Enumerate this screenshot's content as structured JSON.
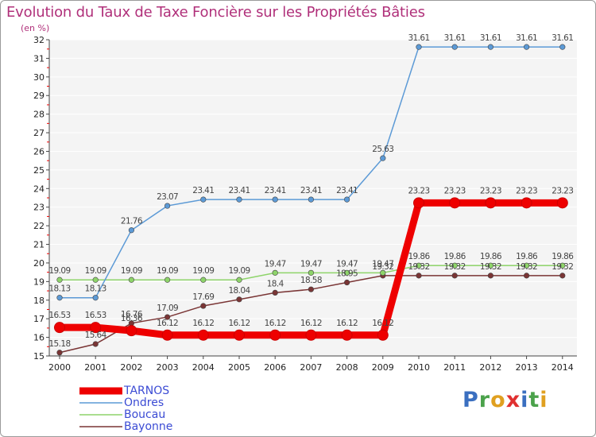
{
  "title": "Evolution du Taux de Taxe Foncière sur les Propriétés Bâties",
  "unit_label": "(en %)",
  "brand": {
    "name": "Proxiti",
    "letters": [
      "P",
      "r",
      "o",
      "x",
      "i",
      "t",
      "i"
    ],
    "letter_colors": [
      "#3a6fc0",
      "#4ba24b",
      "#e0a020",
      "#e03030",
      "#3a6fc0",
      "#4ba24b",
      "#e0a020"
    ]
  },
  "chart_data": {
    "type": "line",
    "title": "Evolution du Taux de Taxe Foncière sur les Propriétés Bâties",
    "ylabel": "(en %)",
    "xlabel": "",
    "categories": [
      "2000",
      "2001",
      "2002",
      "2003",
      "2004",
      "2005",
      "2006",
      "2007",
      "2008",
      "2009",
      "2010",
      "2011",
      "2012",
      "2013",
      "2014"
    ],
    "ylim": [
      15,
      32
    ],
    "yticks": [
      15,
      16,
      17,
      18,
      19,
      20,
      21,
      22,
      23,
      24,
      25,
      26,
      27,
      28,
      29,
      30,
      31,
      32
    ],
    "grid": "horizontal",
    "legend_position": "bottom-left",
    "series": [
      {
        "name": "TARNOS",
        "color": "#ee0000",
        "emphasis": true,
        "values": [
          16.53,
          16.53,
          16.36,
          16.12,
          16.12,
          16.12,
          16.12,
          16.12,
          16.12,
          16.12,
          23.23,
          23.23,
          23.23,
          23.23,
          23.23
        ],
        "labels": [
          "16.53",
          "16.53",
          "16.36",
          "16.12",
          "16.12",
          "16.12",
          "16.12",
          "16.12",
          "16.12",
          "16.12",
          "23.23",
          "23.23",
          "23.23",
          "23.23",
          "23.23"
        ]
      },
      {
        "name": "Ondres",
        "color": "#5c9ad6",
        "values": [
          18.13,
          18.13,
          21.76,
          23.07,
          23.41,
          23.41,
          23.41,
          23.41,
          23.41,
          25.63,
          31.61,
          31.61,
          31.61,
          31.61,
          31.61
        ],
        "labels": [
          "18.13",
          "18.13",
          "21.76",
          "23.07",
          "23.41",
          "23.41",
          "23.41",
          "23.41",
          "23.41",
          "25.63",
          "31.61",
          "31.61",
          "31.61",
          "31.61",
          "31.61"
        ]
      },
      {
        "name": "Boucau",
        "color": "#8ed46a",
        "values": [
          19.09,
          19.09,
          19.09,
          19.09,
          19.09,
          19.09,
          19.47,
          19.47,
          19.47,
          19.47,
          19.86,
          19.86,
          19.86,
          19.86,
          19.86
        ],
        "labels": [
          "19.09",
          "19.09",
          "19.09",
          "19.09",
          "19.09",
          "19.09",
          "19.47",
          "19.47",
          "19.47",
          "19.47",
          "19.86",
          "19.86",
          "19.86",
          "19.86",
          "19.86"
        ]
      },
      {
        "name": "Bayonne",
        "color": "#7a3535",
        "values": [
          15.18,
          15.64,
          16.76,
          17.09,
          17.69,
          18.04,
          18.4,
          18.58,
          18.95,
          19.32,
          19.32,
          19.32,
          19.32,
          19.32,
          19.32
        ],
        "labels": [
          "15.18",
          "15.64",
          "16.76",
          "17.09",
          "17.69",
          "18.04",
          "18.4",
          "18.58",
          "18.95",
          "19.32",
          "19.32",
          "19.32",
          "19.32",
          "19.32",
          "19.32"
        ]
      }
    ]
  }
}
